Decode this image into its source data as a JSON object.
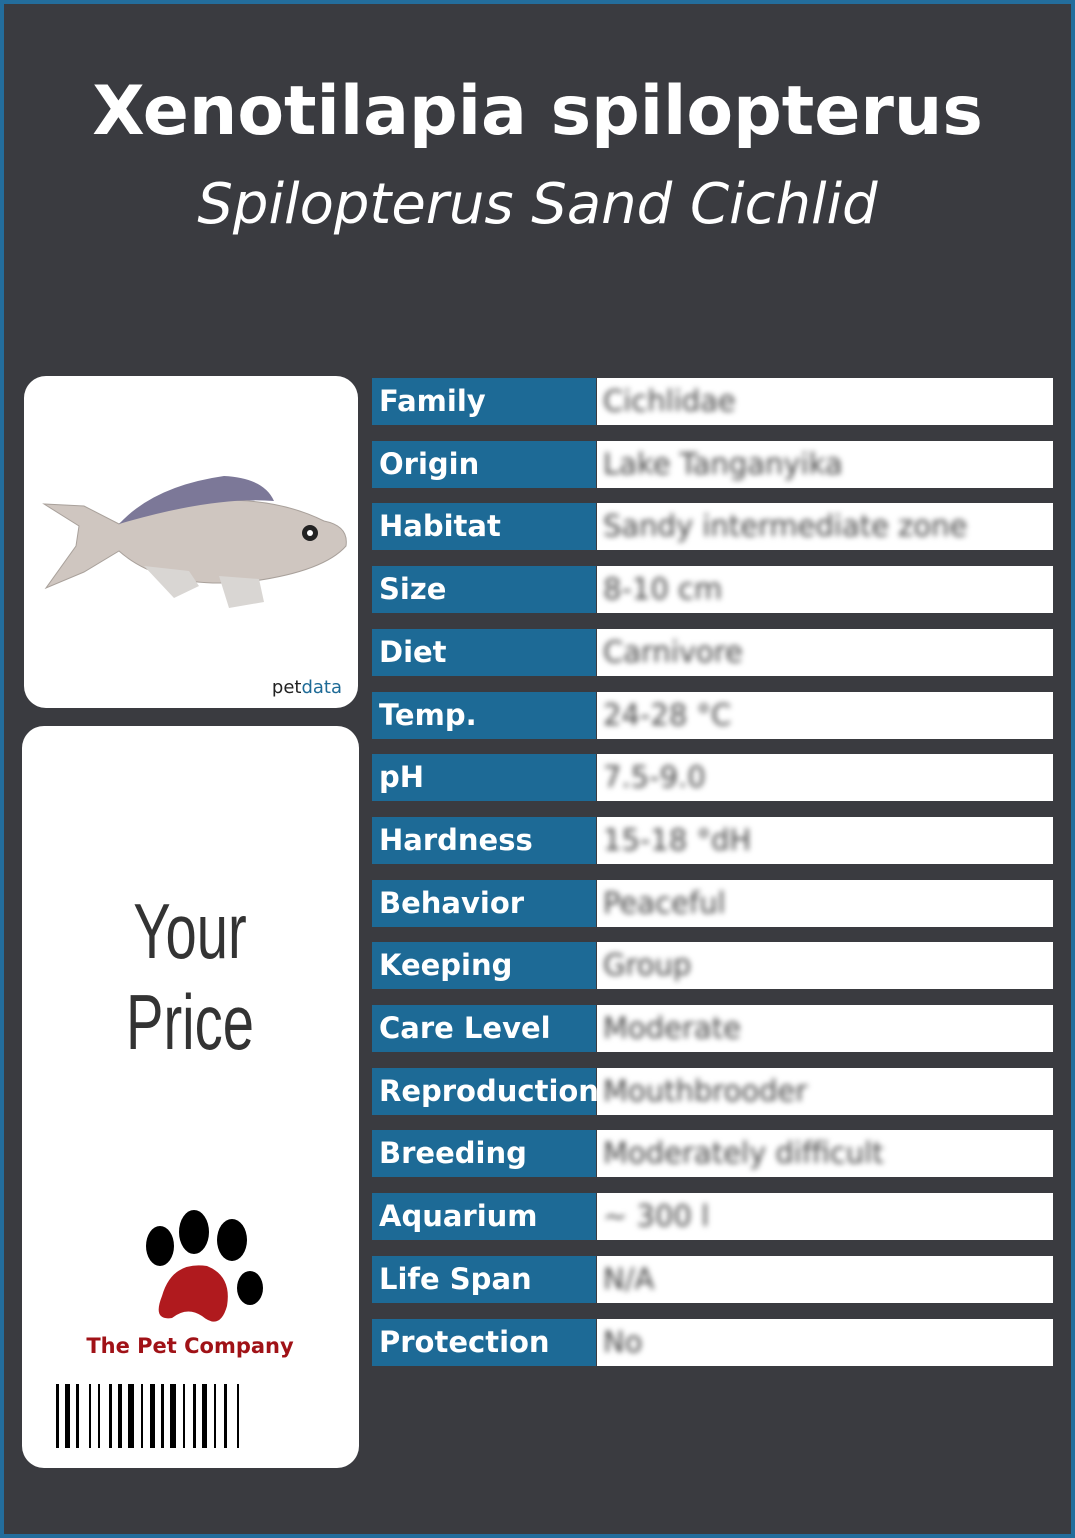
{
  "header": {
    "title": "Xenotilapia spilopterus",
    "subtitle": "Spilopterus Sand Cichlid"
  },
  "image_card": {
    "logo_prefix": "pet",
    "logo_suffix": "data"
  },
  "price_card": {
    "price": "Your Price",
    "company": "The Pet Company"
  },
  "table": {
    "rows": [
      [
        "Family",
        "Cichlidae"
      ],
      [
        "Origin",
        "Lake Tanganyika"
      ],
      [
        "Habitat",
        "Sandy intermediate zone"
      ],
      [
        "Size",
        "8-10 cm"
      ],
      [
        "Diet",
        "Carnivore"
      ],
      [
        "Temp.",
        "24-28 °C"
      ],
      [
        "pH",
        "7.5-9.0"
      ],
      [
        "Hardness",
        "15-18 °dH"
      ],
      [
        "Behavior",
        "Peaceful"
      ],
      [
        "Keeping",
        "Group"
      ],
      [
        "Care Level",
        "Moderate"
      ],
      [
        "Reproduction",
        "Mouthbrooder"
      ],
      [
        "Breeding",
        "Moderately difficult"
      ],
      [
        "Aquarium",
        "~ 300 l"
      ],
      [
        "Life Span",
        "N/A"
      ],
      [
        "Protection",
        "No"
      ]
    ]
  }
}
